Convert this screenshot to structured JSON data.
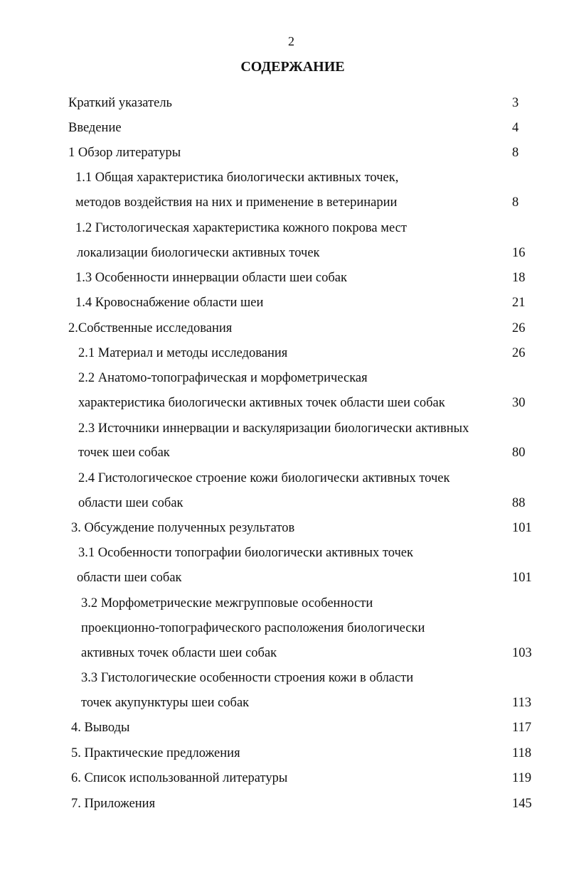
{
  "page_number": "2",
  "title": "СОДЕРЖАНИЕ",
  "entries": [
    {
      "text": "Краткий указатель",
      "page": "3"
    },
    {
      "text": "Введение",
      "page": "4"
    },
    {
      "text": "1 Обзор литературы",
      "page": "8"
    },
    {
      "text": "1.1 Общая характеристика биологически активных точек,",
      "page": ""
    },
    {
      "text": "методов воздействия на них и применение в ветеринарии",
      "page": "8"
    },
    {
      "text": "1.2 Гистологическая характеристика кожного покрова мест",
      "page": ""
    },
    {
      "text": "локализации биологически активных точек",
      "page": "16"
    },
    {
      "text": "1.3 Особенности иннервации области шеи собак",
      "page": "18"
    },
    {
      "text": "1.4 Кровоснабжение области шеи",
      "page": "21"
    },
    {
      "text": "2.Собственные исследования",
      "page": "26"
    },
    {
      "text": "2.1 Материал и методы исследования",
      "page": "26"
    },
    {
      "text": "2.2 Анатомо-топографическая и морфометрическая",
      "page": ""
    },
    {
      "text": "характеристика биологически активных точек области шеи собак",
      "page": "30"
    },
    {
      "text": "2.3 Источники иннервации и васкуляризации биологически активных",
      "page": ""
    },
    {
      "text": "точек шеи собак",
      "page": "80"
    },
    {
      "text": "2.4 Гистологическое строение кожи биологически активных точек",
      "page": ""
    },
    {
      "text": "области шеи собак",
      "page": "88"
    },
    {
      "text": "3. Обсуждение полученных результатов",
      "page": "101"
    },
    {
      "text": "3.1 Особенности топографии биологически активных точек",
      "page": ""
    },
    {
      "text": "области шеи собак",
      "page": "101"
    },
    {
      "text": "3.2 Морфометрические межгрупповые особенности",
      "page": ""
    },
    {
      "text": "проекционно-топографического расположения биологически",
      "page": ""
    },
    {
      "text": "активных точек области шеи собак",
      "page": "103"
    },
    {
      "text": "3.3 Гистологические особенности строения кожи в области",
      "page": ""
    },
    {
      "text": "точек акупунктуры шеи собак",
      "page": "113"
    },
    {
      "text": "4. Выводы",
      "page": "117"
    },
    {
      "text": "5. Практические предложения",
      "page": "118"
    },
    {
      "text": "6. Список использованной литературы",
      "page": "119"
    },
    {
      "text": "7. Приложения",
      "page": "145"
    }
  ]
}
